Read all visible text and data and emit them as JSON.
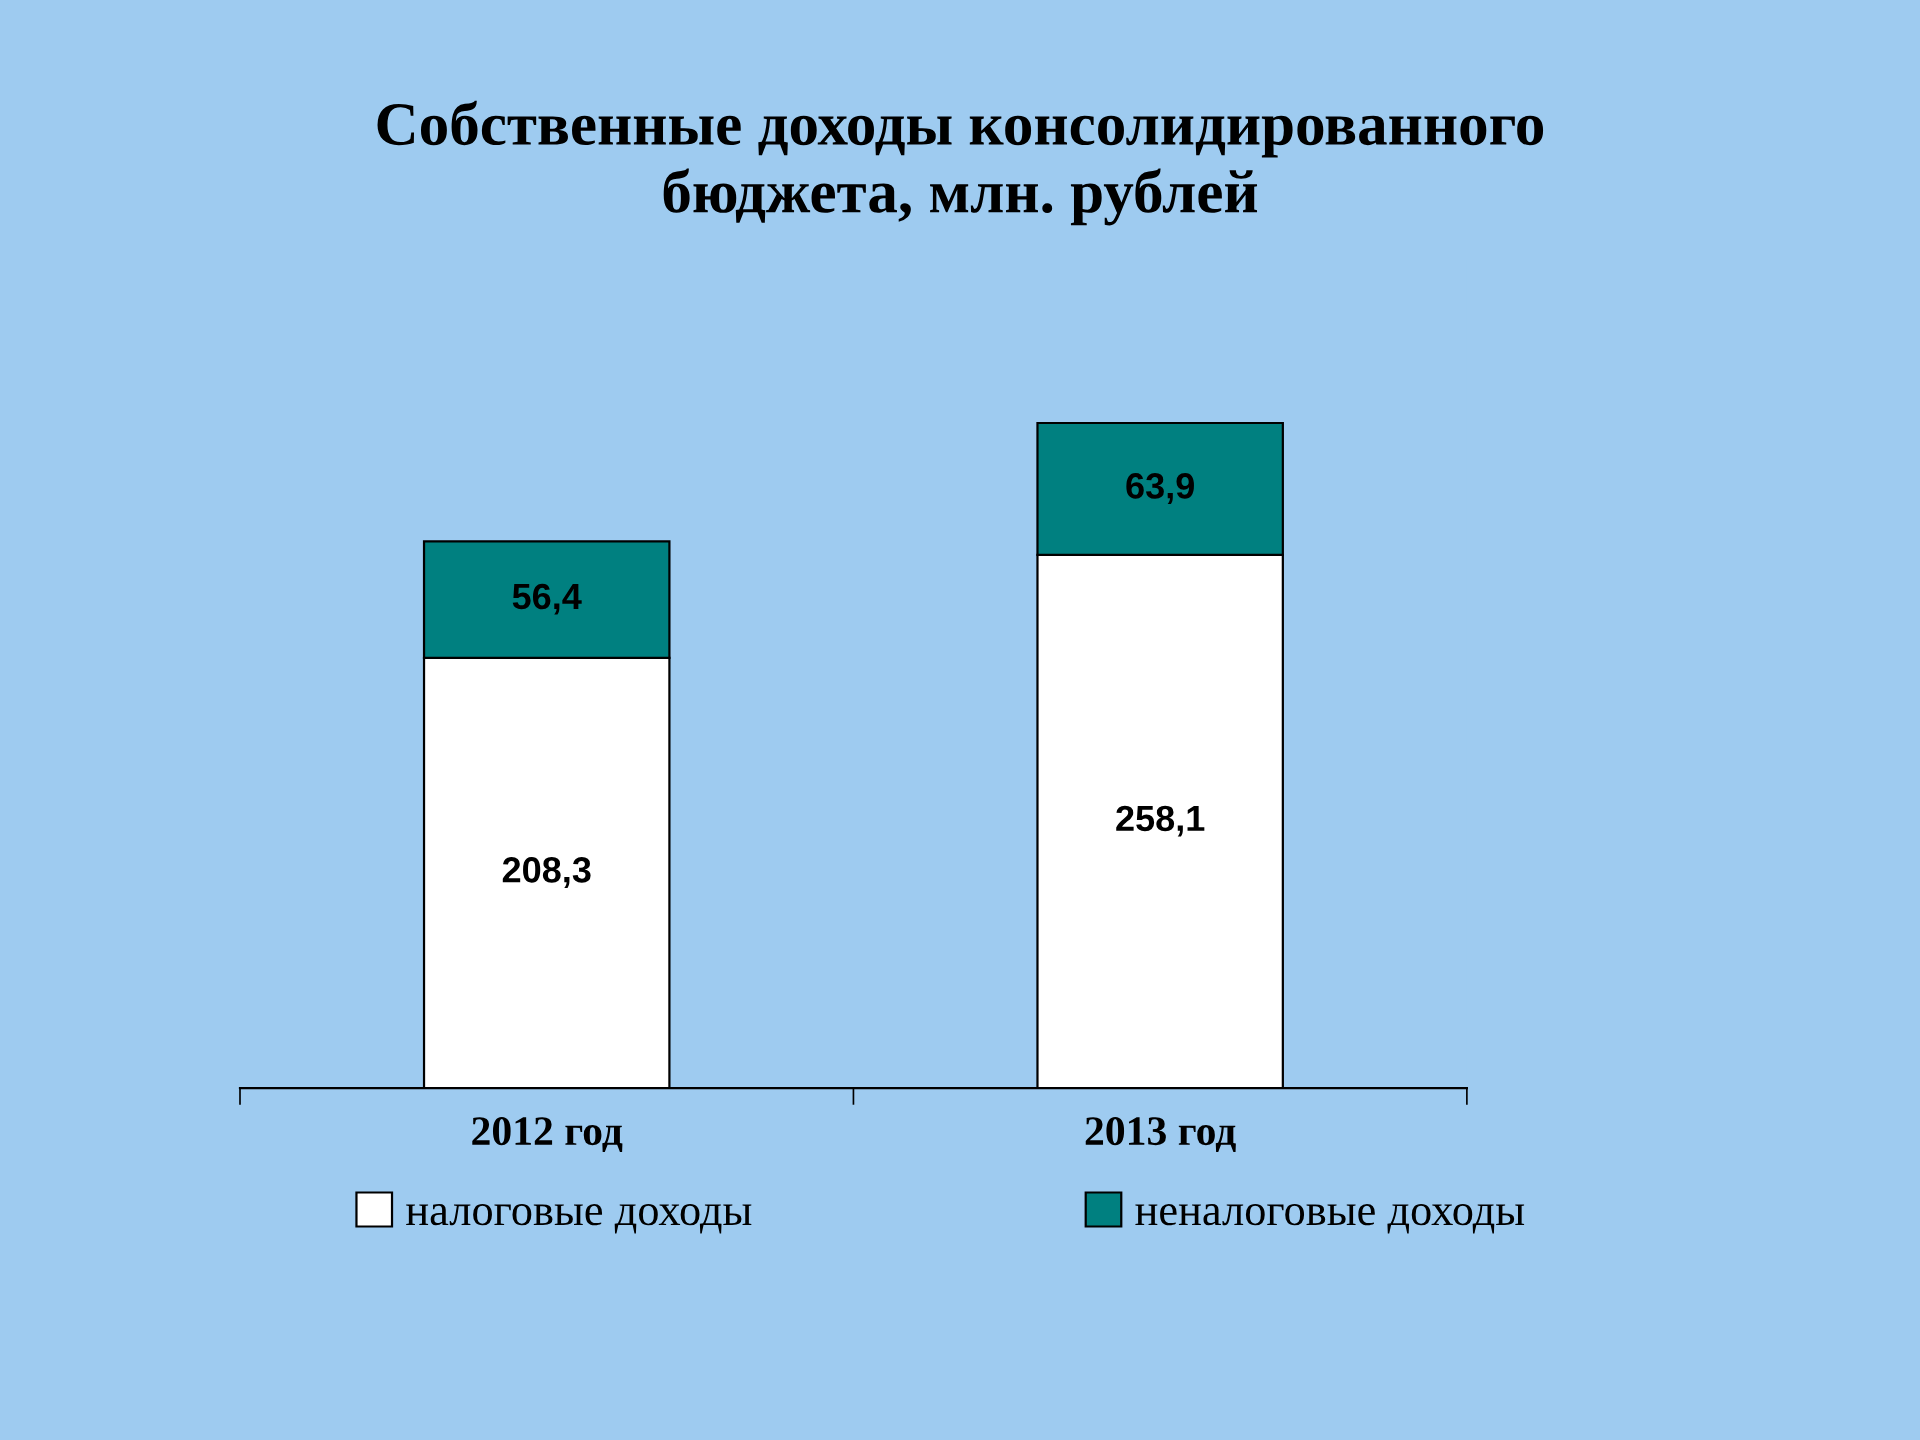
{
  "chart_data": {
    "type": "bar",
    "title": "Собственные доходы консолидированного\nбюджета, млн. рублей",
    "categories": [
      "2012 год",
      "2013 год"
    ],
    "series": [
      {
        "name": "налоговые доходы",
        "color": "#ffffff",
        "values": [
          208.3,
          258.1
        ],
        "value_labels": [
          "208,3",
          "258,1"
        ]
      },
      {
        "name": "неналоговые доходы",
        "color": "#008080",
        "values": [
          56.4,
          63.9
        ],
        "value_labels": [
          "56,4",
          "63,9"
        ]
      }
    ],
    "stacked": true,
    "legend": "bottom",
    "grid": false
  }
}
